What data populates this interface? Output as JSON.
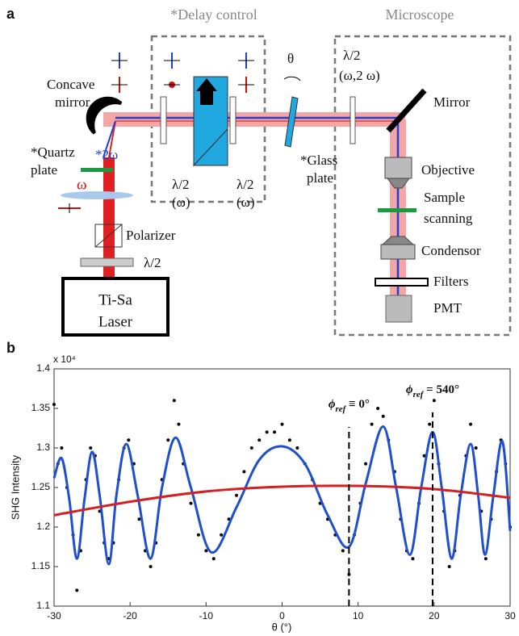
{
  "diagram": {
    "panel_label": "a",
    "delay_title": "*Delay control",
    "microscope_title": "Microscope",
    "concave_mirror": [
      "Concave",
      "mirror"
    ],
    "quartz_plate": [
      "*Quartz",
      "plate"
    ],
    "two_omega": "*2ω",
    "omega": "ω",
    "polarizer": "Polarizer",
    "half_wave_laser": "λ/2",
    "laser": [
      "Ti-Sa",
      "Laser"
    ],
    "half_wave_1": [
      "λ/2",
      "(ω)"
    ],
    "half_wave_2": [
      "λ/2",
      "(ω)"
    ],
    "theta": "θ",
    "glass_plate": [
      "*Glass",
      "plate"
    ],
    "half_wave_3": [
      "λ/2",
      "(ω,2 ω)"
    ],
    "mirror": "Mirror",
    "objective": "Objective",
    "sample": [
      "Sample",
      "scanning"
    ],
    "condensor": "Condensor",
    "filters": "Filters",
    "pmt": "PMT"
  },
  "chart_data": {
    "type": "scatter",
    "panel_label": "b",
    "axis_multiplier": "x 10⁴",
    "xlabel": "θ (°)",
    "ylabel": "SHG Intensity",
    "xlim": [
      -30,
      30
    ],
    "ylim": [
      1.1,
      1.4
    ],
    "xticks": [
      -30,
      -20,
      -10,
      0,
      10,
      20,
      30
    ],
    "yticks": [
      1.1,
      1.15,
      1.2,
      1.25,
      1.3,
      1.35,
      1.4
    ],
    "series": [
      {
        "style": "markers",
        "color": "#000000",
        "x": [
          -30,
          -29.5,
          -29,
          -28.3,
          -27.5,
          -27,
          -26.5,
          -25.8,
          -25.2,
          -24.6,
          -24,
          -23.4,
          -22.8,
          -22.2,
          -21.5,
          -20.8,
          -20.2,
          -19.5,
          -18.8,
          -18,
          -17.3,
          -16.6,
          -15.8,
          -15,
          -14.2,
          -13.6,
          -13,
          -12,
          -11,
          -10,
          -9,
          -8,
          -7,
          -6,
          -5,
          -4,
          -3,
          -2,
          -1,
          0,
          1,
          2,
          3,
          4,
          5,
          6,
          7,
          8,
          8.8,
          9.5,
          10.3,
          11,
          11.8,
          12.6,
          13.3,
          14,
          14.8,
          15.6,
          16.4,
          17.2,
          18,
          18.7,
          19.4,
          20,
          20.6,
          21.3,
          22,
          22.7,
          23.4,
          24.2,
          24.8,
          25.5,
          26.2,
          26.8,
          27.5,
          28.2,
          28.8,
          29.4,
          30
        ],
        "values": [
          1.355,
          1.28,
          1.3,
          1.25,
          1.19,
          1.12,
          1.17,
          1.26,
          1.3,
          1.29,
          1.22,
          1.18,
          1.16,
          1.18,
          1.26,
          1.3,
          1.31,
          1.28,
          1.21,
          1.17,
          1.15,
          1.18,
          1.26,
          1.31,
          1.36,
          1.33,
          1.28,
          1.23,
          1.19,
          1.17,
          1.16,
          1.19,
          1.21,
          1.24,
          1.27,
          1.3,
          1.31,
          1.32,
          1.32,
          1.33,
          1.31,
          1.3,
          1.28,
          1.26,
          1.23,
          1.21,
          1.19,
          1.17,
          1.14,
          1.19,
          1.23,
          1.28,
          1.33,
          1.35,
          1.34,
          1.31,
          1.27,
          1.21,
          1.17,
          1.16,
          1.23,
          1.29,
          1.33,
          1.36,
          1.28,
          1.22,
          1.15,
          1.17,
          1.24,
          1.29,
          1.33,
          1.3,
          1.22,
          1.16,
          1.21,
          1.27,
          1.31,
          1.28,
          1.2
        ]
      },
      {
        "style": "line",
        "color": "#1f4fd0",
        "x": [
          -30,
          -29,
          -28,
          -27,
          -26,
          -25,
          -24,
          -22.8,
          -21.8,
          -20.5,
          -19,
          -17.3,
          -15.8,
          -14,
          -12,
          -9.3,
          -6,
          -3,
          0,
          3,
          6,
          8.8,
          11,
          13.3,
          15,
          16.8,
          18.3,
          19.8,
          21,
          22.3,
          23.5,
          24.8,
          25.8,
          26.7,
          27.8,
          29,
          30
        ],
        "values": [
          1.262,
          1.287,
          1.235,
          1.16,
          1.235,
          1.295,
          1.24,
          1.153,
          1.24,
          1.305,
          1.24,
          1.16,
          1.25,
          1.313,
          1.25,
          1.168,
          1.225,
          1.285,
          1.302,
          1.28,
          1.215,
          1.175,
          1.255,
          1.327,
          1.25,
          1.165,
          1.25,
          1.32,
          1.25,
          1.16,
          1.24,
          1.305,
          1.24,
          1.165,
          1.24,
          1.308,
          1.195
        ]
      },
      {
        "style": "line",
        "color": "#d42020",
        "x": [
          -30,
          -20,
          -10,
          0,
          10,
          20,
          30
        ],
        "values": [
          1.215,
          1.232,
          1.245,
          1.251,
          1.252,
          1.248,
          1.237
        ]
      }
    ],
    "reference_lines": [
      {
        "x": 8.8,
        "symbol": "ϕ",
        "subscript": "ref",
        "text": " ≡ 0°"
      },
      {
        "x": 19.8,
        "symbol": "ϕ",
        "subscript": "ref",
        "text": " = 540°"
      }
    ]
  }
}
